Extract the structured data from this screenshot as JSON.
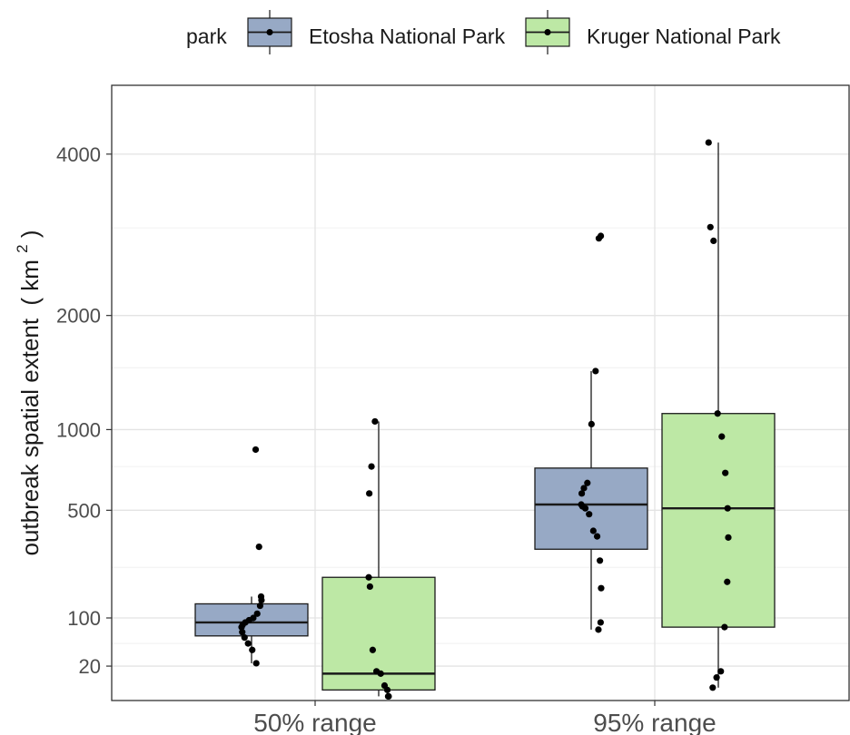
{
  "chart_data": {
    "type": "box",
    "title": "",
    "xlabel": "",
    "ylabel": "outbreak spatial extent",
    "ylabel_unit_open": "( km",
    "ylabel_unit_sup": "2",
    "ylabel_unit_close": ")",
    "y_scale": "sqrt",
    "ylim": [
      0,
      4700
    ],
    "y_ticks": [
      20,
      100,
      500,
      1000,
      2000,
      4000
    ],
    "y_minor_gridlines": [
      50,
      250,
      750,
      1500,
      3000
    ],
    "grid": true,
    "legend": {
      "position": "top",
      "title": "park",
      "entries": [
        "Etosha National Park",
        "Kruger National Park"
      ]
    },
    "categories": [
      "50% range",
      "95% range"
    ],
    "series": [
      {
        "name": "Etosha National Park",
        "color": "#97a9c5",
        "boxes": [
          {
            "category": "50% range",
            "q1": 63,
            "median": 90,
            "q3": 135,
            "whisker_low": 23,
            "whisker_high": 155
          },
          {
            "category": "95% range",
            "q1": 320,
            "median": 530,
            "q3": 740,
            "whisker_low": 75,
            "whisker_high": 1470
          }
        ],
        "points": [
          {
            "category": "50% range",
            "values": [
              860,
              330,
              155,
              145,
              130,
              110,
              100,
              95,
              90,
              85,
              80,
              70,
              60,
              50,
              40,
              23
            ]
          },
          {
            "category": "95% range",
            "values": [
              2900,
              2870,
              1470,
              1040,
              650,
              620,
              590,
              530,
              520,
              510,
              480,
              400,
              375,
              275,
              180,
              90,
              75
            ]
          }
        ]
      },
      {
        "name": "Kruger National Park",
        "color": "#bde8a5",
        "boxes": [
          {
            "category": "50% range",
            "q1": 3,
            "median": 13,
            "q3": 215,
            "whisker_low": 1,
            "whisker_high": 1060
          },
          {
            "category": "95% range",
            "q1": 80,
            "median": 510,
            "q3": 1120,
            "whisker_low": 4,
            "whisker_high": 4170
          }
        ],
        "points": [
          {
            "category": "50% range",
            "values": [
              1060,
              750,
              590,
              215,
              185,
              40,
              15,
              13,
              5,
              3,
              1,
              1
            ]
          },
          {
            "category": "95% range",
            "values": [
              4170,
              3010,
              2840,
              1120,
              950,
              710,
              510,
              370,
              200,
              80,
              15,
              10,
              4
            ]
          }
        ]
      }
    ]
  }
}
